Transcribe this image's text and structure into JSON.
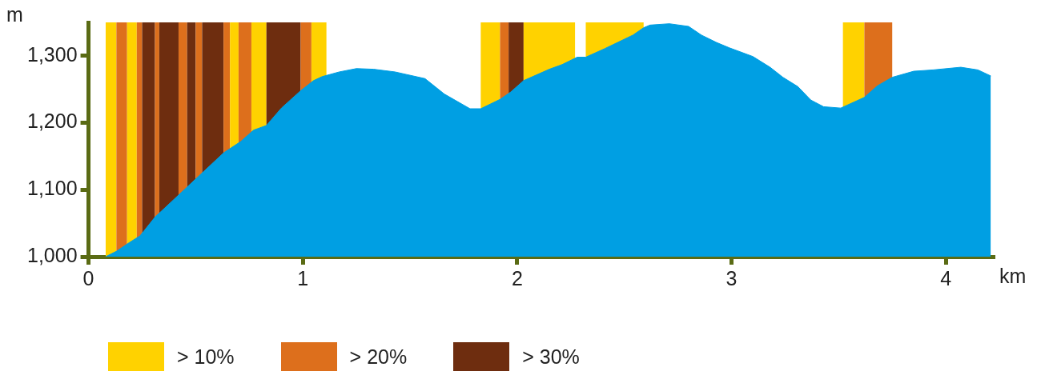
{
  "chart_data": {
    "type": "area",
    "xlabel": "km",
    "ylabel": "m",
    "x": [
      0.08,
      0.13,
      0.19,
      0.24,
      0.31,
      0.4,
      0.46,
      0.53,
      0.63,
      0.71,
      0.77,
      0.83,
      0.9,
      0.99,
      1.05,
      1.09,
      1.17,
      1.25,
      1.33,
      1.43,
      1.57,
      1.66,
      1.78,
      1.83,
      1.92,
      1.97,
      2.03,
      2.15,
      2.21,
      2.28,
      2.32,
      2.41,
      2.54,
      2.59,
      2.62,
      2.71,
      2.8,
      2.86,
      2.93,
      2.99,
      3.1,
      3.18,
      3.24,
      3.31,
      3.37,
      3.43,
      3.51,
      3.62,
      3.68,
      3.75,
      3.85,
      3.94,
      4.07,
      4.15,
      4.21
    ],
    "series": [
      {
        "color": "#009fe3",
        "values": [
          1000,
          1008,
          1021,
          1031,
          1059,
          1086,
          1104,
          1125,
          1155,
          1172,
          1189,
          1196,
          1222,
          1248,
          1263,
          1269,
          1276,
          1281,
          1280,
          1276,
          1266,
          1243,
          1221,
          1221,
          1235,
          1246,
          1263,
          1280,
          1287,
          1298,
          1298,
          1311,
          1331,
          1342,
          1346,
          1348,
          1344,
          1331,
          1320,
          1312,
          1299,
          1283,
          1268,
          1254,
          1234,
          1224,
          1222,
          1238,
          1255,
          1268,
          1277,
          1279,
          1283,
          1279,
          1270
        ]
      }
    ],
    "xlim": [
      0,
      4.22
    ],
    "ylim": [
      1000,
      1350
    ],
    "xticks": [
      0,
      1,
      2,
      3,
      4
    ],
    "yticks": [
      {
        "value": 1000,
        "label": "1,000"
      },
      {
        "value": 1100,
        "label": "1,100"
      },
      {
        "value": 1200,
        "label": "1,200"
      },
      {
        "value": 1300,
        "label": "1,300"
      }
    ],
    "grid": false,
    "legend": "bottom",
    "bands": [
      {
        "axis": "x",
        "from": 0.08,
        "to": 0.13,
        "label": "> 10%",
        "color": "#ffd200"
      },
      {
        "axis": "x",
        "from": 0.13,
        "to": 0.18,
        "label": "> 20%",
        "color": "#dd6f1c"
      },
      {
        "axis": "x",
        "from": 0.18,
        "to": 0.225,
        "color": "#ffd200"
      },
      {
        "axis": "x",
        "from": 0.225,
        "to": 0.25,
        "color": "#dd6f1c"
      },
      {
        "axis": "x",
        "from": 0.25,
        "to": 0.31,
        "label": "> 30%",
        "color": "#6e2d0f"
      },
      {
        "axis": "x",
        "from": 0.31,
        "to": 0.33,
        "color": "#dd6f1c"
      },
      {
        "axis": "x",
        "from": 0.33,
        "to": 0.42,
        "color": "#6e2d0f"
      },
      {
        "axis": "x",
        "from": 0.42,
        "to": 0.46,
        "color": "#dd6f1c"
      },
      {
        "axis": "x",
        "from": 0.46,
        "to": 0.5,
        "color": "#6e2d0f"
      },
      {
        "axis": "x",
        "from": 0.5,
        "to": 0.53,
        "color": "#dd6f1c"
      },
      {
        "axis": "x",
        "from": 0.53,
        "to": 0.63,
        "color": "#6e2d0f"
      },
      {
        "axis": "x",
        "from": 0.63,
        "to": 0.66,
        "color": "#dd6f1c"
      },
      {
        "axis": "x",
        "from": 0.66,
        "to": 0.7,
        "color": "#ffd200"
      },
      {
        "axis": "x",
        "from": 0.7,
        "to": 0.76,
        "color": "#dd6f1c"
      },
      {
        "axis": "x",
        "from": 0.76,
        "to": 0.83,
        "color": "#ffd200"
      },
      {
        "axis": "x",
        "from": 0.83,
        "to": 0.99,
        "color": "#6e2d0f"
      },
      {
        "axis": "x",
        "from": 0.99,
        "to": 1.04,
        "color": "#dd6f1c"
      },
      {
        "axis": "x",
        "from": 1.04,
        "to": 1.11,
        "color": "#ffd200"
      },
      {
        "axis": "x",
        "from": 1.83,
        "to": 1.92,
        "color": "#ffd200"
      },
      {
        "axis": "x",
        "from": 1.92,
        "to": 1.96,
        "color": "#dd6f1c"
      },
      {
        "axis": "x",
        "from": 1.96,
        "to": 2.03,
        "color": "#6e2d0f"
      },
      {
        "axis": "x",
        "from": 2.03,
        "to": 2.27,
        "color": "#ffd200"
      },
      {
        "axis": "x",
        "from": 2.32,
        "to": 2.59,
        "color": "#ffd200"
      },
      {
        "axis": "x",
        "from": 3.52,
        "to": 3.62,
        "color": "#ffd200"
      },
      {
        "axis": "x",
        "from": 3.62,
        "to": 3.75,
        "color": "#dd6f1c"
      }
    ]
  }
}
